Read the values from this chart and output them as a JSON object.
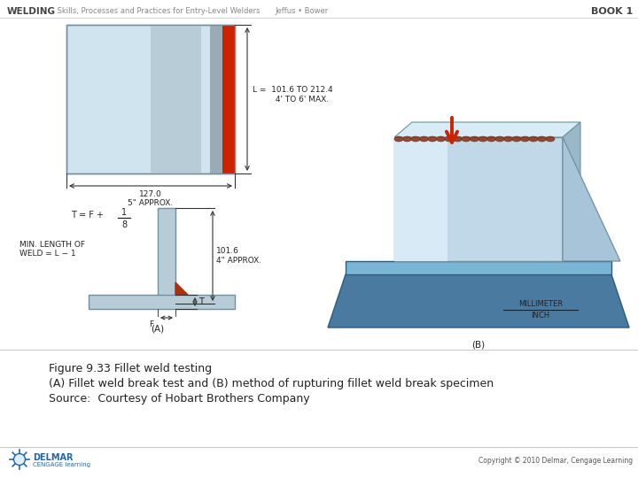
{
  "bg_color": "#ffffff",
  "header_left_bold": "WELDING",
  "header_left_rest": " Skills, Processes and Practices for Entry-Level Welders",
  "header_center": "Jeffus • Bower",
  "header_right": "BOOK 1",
  "caption_line1": "Figure 9.33 Fillet weld testing",
  "caption_line2": "(A) Fillet weld break test and (B) method of rupturing fillet weld break specimen",
  "caption_line3": "Source:  Courtesy of Hobart Brothers Company",
  "footer_right": "Copyright © 2010 Delmar, Cengage Learning",
  "plate_color_light": "#cddde8",
  "plate_color_grad": "#a8c4d4",
  "plate_edge_color": "#7090a0",
  "weld_red": "#cc2200",
  "gray_stripe": "#9aabb5",
  "blue_base": "#5b8fb5",
  "blue_base_dark": "#3a6a8a",
  "blue_base_light": "#7ab0d0",
  "dark_line": "#333333",
  "weld_bead": "#8b3a20",
  "arrow_red": "#cc2200",
  "label_color": "#222222",
  "header_color": "#888888",
  "header_bold_color": "#444444"
}
